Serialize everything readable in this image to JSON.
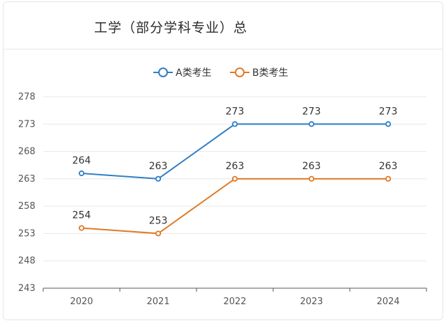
{
  "title": "工学（部分学科专业）总",
  "chart_data": {
    "type": "line",
    "categories": [
      "2020",
      "2021",
      "2022",
      "2023",
      "2024"
    ],
    "series": [
      {
        "name": "A类考生",
        "values": [
          264,
          263,
          273,
          273,
          273
        ],
        "color": "#2f7ec4"
      },
      {
        "name": "B类考生",
        "values": [
          254,
          253,
          263,
          263,
          263
        ],
        "color": "#e07a26"
      }
    ],
    "yticks": [
      278,
      273,
      268,
      263,
      258,
      253,
      248,
      243
    ],
    "ylim": [
      243,
      278
    ],
    "grid": true,
    "legend_position": "top-center"
  }
}
